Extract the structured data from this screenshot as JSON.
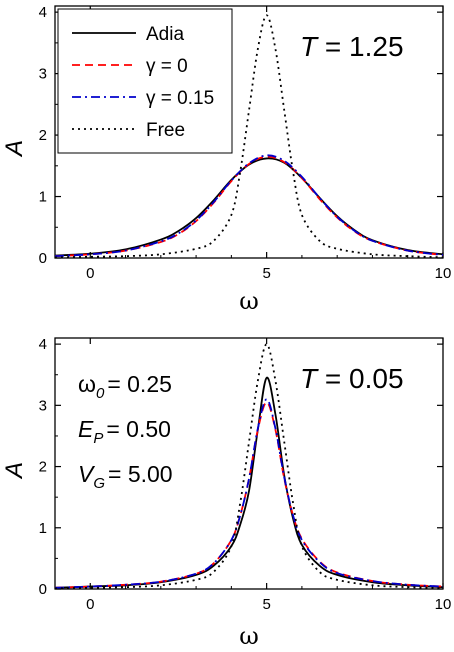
{
  "chart_data": [
    {
      "type": "line",
      "xlabel": "ω",
      "ylabel": "A",
      "xlim": [
        -1,
        10
      ],
      "ylim": [
        0,
        4.1
      ],
      "xticks": [
        "0",
        "5",
        "10"
      ],
      "yticks": [
        "0",
        "1",
        "2",
        "3",
        "4"
      ],
      "annotation": {
        "var": "T",
        "text": " = 1.25"
      },
      "legend": {
        "placement": "top-left",
        "entries": [
          "Adia",
          "γ = 0",
          "γ = 0.15",
          "Free"
        ]
      },
      "series": [
        {
          "name": "Adia",
          "color": "#000000",
          "style": "solid",
          "x": [
            -1,
            0,
            1,
            2,
            2.5,
            3,
            3.5,
            4,
            4.5,
            5,
            5.5,
            6,
            6.5,
            7,
            7.5,
            8,
            9,
            10
          ],
          "y": [
            0.04,
            0.07,
            0.14,
            0.3,
            0.44,
            0.65,
            0.94,
            1.27,
            1.52,
            1.62,
            1.55,
            1.3,
            0.98,
            0.68,
            0.45,
            0.29,
            0.13,
            0.06
          ]
        },
        {
          "name": "γ = 0",
          "color": "#ff0000",
          "style": "dashed",
          "x": [
            -1,
            0,
            1,
            2,
            2.5,
            3,
            3.5,
            4,
            4.5,
            5,
            5.5,
            6,
            6.5,
            7,
            7.5,
            8,
            9,
            10
          ],
          "y": [
            0.03,
            0.06,
            0.12,
            0.26,
            0.39,
            0.6,
            0.9,
            1.25,
            1.53,
            1.65,
            1.56,
            1.3,
            0.96,
            0.66,
            0.43,
            0.28,
            0.12,
            0.05
          ]
        },
        {
          "name": "γ = 0.15",
          "color": "#0000cc",
          "style": "dashdot",
          "x": [
            -1,
            0,
            1,
            2,
            2.5,
            3,
            3.5,
            4,
            4.5,
            5,
            5.5,
            6,
            6.5,
            7,
            7.5,
            8,
            9,
            10
          ],
          "y": [
            0.03,
            0.06,
            0.12,
            0.27,
            0.4,
            0.61,
            0.91,
            1.26,
            1.54,
            1.67,
            1.58,
            1.32,
            0.98,
            0.67,
            0.44,
            0.28,
            0.12,
            0.05
          ]
        },
        {
          "name": "Free",
          "color": "#000000",
          "style": "dotted",
          "x": [
            -1,
            0,
            1,
            2,
            3,
            3.5,
            4,
            4.25,
            4.5,
            4.75,
            5,
            5.25,
            5.5,
            5.75,
            6,
            6.5,
            7,
            8,
            9,
            10
          ],
          "y": [
            0.01,
            0.02,
            0.03,
            0.06,
            0.15,
            0.28,
            0.7,
            1.4,
            2.4,
            3.4,
            3.95,
            3.4,
            2.4,
            1.4,
            0.7,
            0.28,
            0.15,
            0.06,
            0.03,
            0.01
          ]
        }
      ]
    },
    {
      "type": "line",
      "xlabel": "ω",
      "ylabel": "A",
      "xlim": [
        -1,
        10
      ],
      "ylim": [
        0,
        4.1
      ],
      "xticks": [
        "0",
        "5",
        "10"
      ],
      "yticks": [
        "0",
        "1",
        "2",
        "3",
        "4"
      ],
      "annotation": {
        "var": "T",
        "text": " = 0.05"
      },
      "params": [
        {
          "sym": "ω",
          "sub": "0",
          "val": "= 0.25"
        },
        {
          "sym": "E",
          "sub": "P",
          "val": "= 0.50"
        },
        {
          "sym": "V",
          "sub": "G",
          "val": "= 5.00"
        }
      ],
      "series": [
        {
          "name": "Adia",
          "color": "#000000",
          "style": "solid",
          "x": [
            -1,
            0,
            1,
            2,
            3,
            3.5,
            4,
            4.25,
            4.5,
            4.75,
            5,
            5.25,
            5.5,
            5.75,
            6,
            6.5,
            7,
            8,
            9,
            10
          ],
          "y": [
            0.02,
            0.04,
            0.06,
            0.11,
            0.23,
            0.38,
            0.7,
            1.05,
            1.6,
            2.6,
            3.45,
            2.85,
            1.85,
            1.15,
            0.72,
            0.38,
            0.23,
            0.11,
            0.06,
            0.03
          ]
        },
        {
          "name": "γ = 0",
          "color": "#ff0000",
          "style": "dashed",
          "x": [
            -1,
            0,
            1,
            2,
            3,
            3.5,
            4,
            4.25,
            4.5,
            4.75,
            5,
            5.25,
            5.5,
            5.75,
            6,
            6.5,
            7,
            8,
            9,
            10
          ],
          "y": [
            0.02,
            0.04,
            0.07,
            0.12,
            0.25,
            0.42,
            0.8,
            1.2,
            1.8,
            2.6,
            3.05,
            2.6,
            1.8,
            1.2,
            0.82,
            0.45,
            0.27,
            0.13,
            0.07,
            0.04
          ]
        },
        {
          "name": "γ = 0.15",
          "color": "#0000cc",
          "style": "dashdot",
          "x": [
            -1,
            0,
            1,
            2,
            3,
            3.5,
            4,
            4.25,
            4.5,
            4.75,
            5,
            5.25,
            5.5,
            5.75,
            6,
            6.5,
            7,
            8,
            9,
            10
          ],
          "y": [
            0.02,
            0.04,
            0.07,
            0.12,
            0.25,
            0.42,
            0.8,
            1.2,
            1.8,
            2.62,
            3.1,
            2.62,
            1.82,
            1.2,
            0.8,
            0.44,
            0.26,
            0.13,
            0.07,
            0.04
          ]
        },
        {
          "name": "Free",
          "color": "#000000",
          "style": "dotted",
          "x": [
            -1,
            0,
            1,
            2,
            3,
            3.5,
            4,
            4.25,
            4.5,
            4.75,
            5,
            5.25,
            5.5,
            5.75,
            6,
            6.5,
            7,
            8,
            9,
            10
          ],
          "y": [
            0.01,
            0.02,
            0.03,
            0.06,
            0.15,
            0.28,
            0.7,
            1.4,
            2.4,
            3.4,
            4.0,
            3.4,
            2.4,
            1.4,
            0.7,
            0.28,
            0.15,
            0.06,
            0.03,
            0.01
          ]
        }
      ]
    }
  ]
}
